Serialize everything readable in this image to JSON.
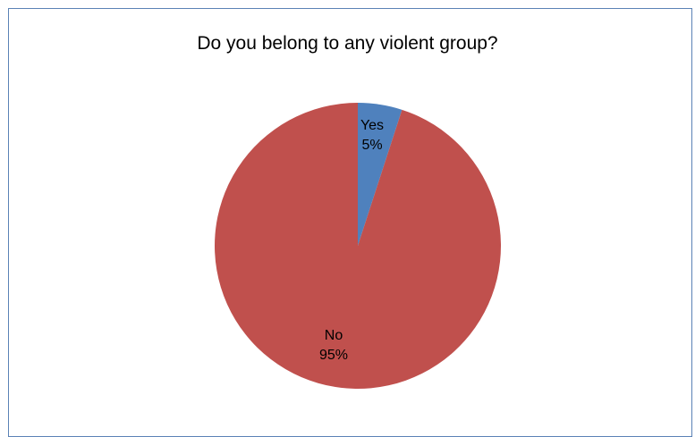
{
  "chart_data": {
    "type": "pie",
    "title": "Do you belong to any violent group?",
    "slices": [
      {
        "label": "Yes",
        "value": 5,
        "value_label": "5%",
        "color": "#4f81bd"
      },
      {
        "label": "No",
        "value": 95,
        "value_label": "95%",
        "color": "#c0504d"
      }
    ],
    "legend": "none",
    "start_angle": "12 o'clock, clockwise"
  }
}
